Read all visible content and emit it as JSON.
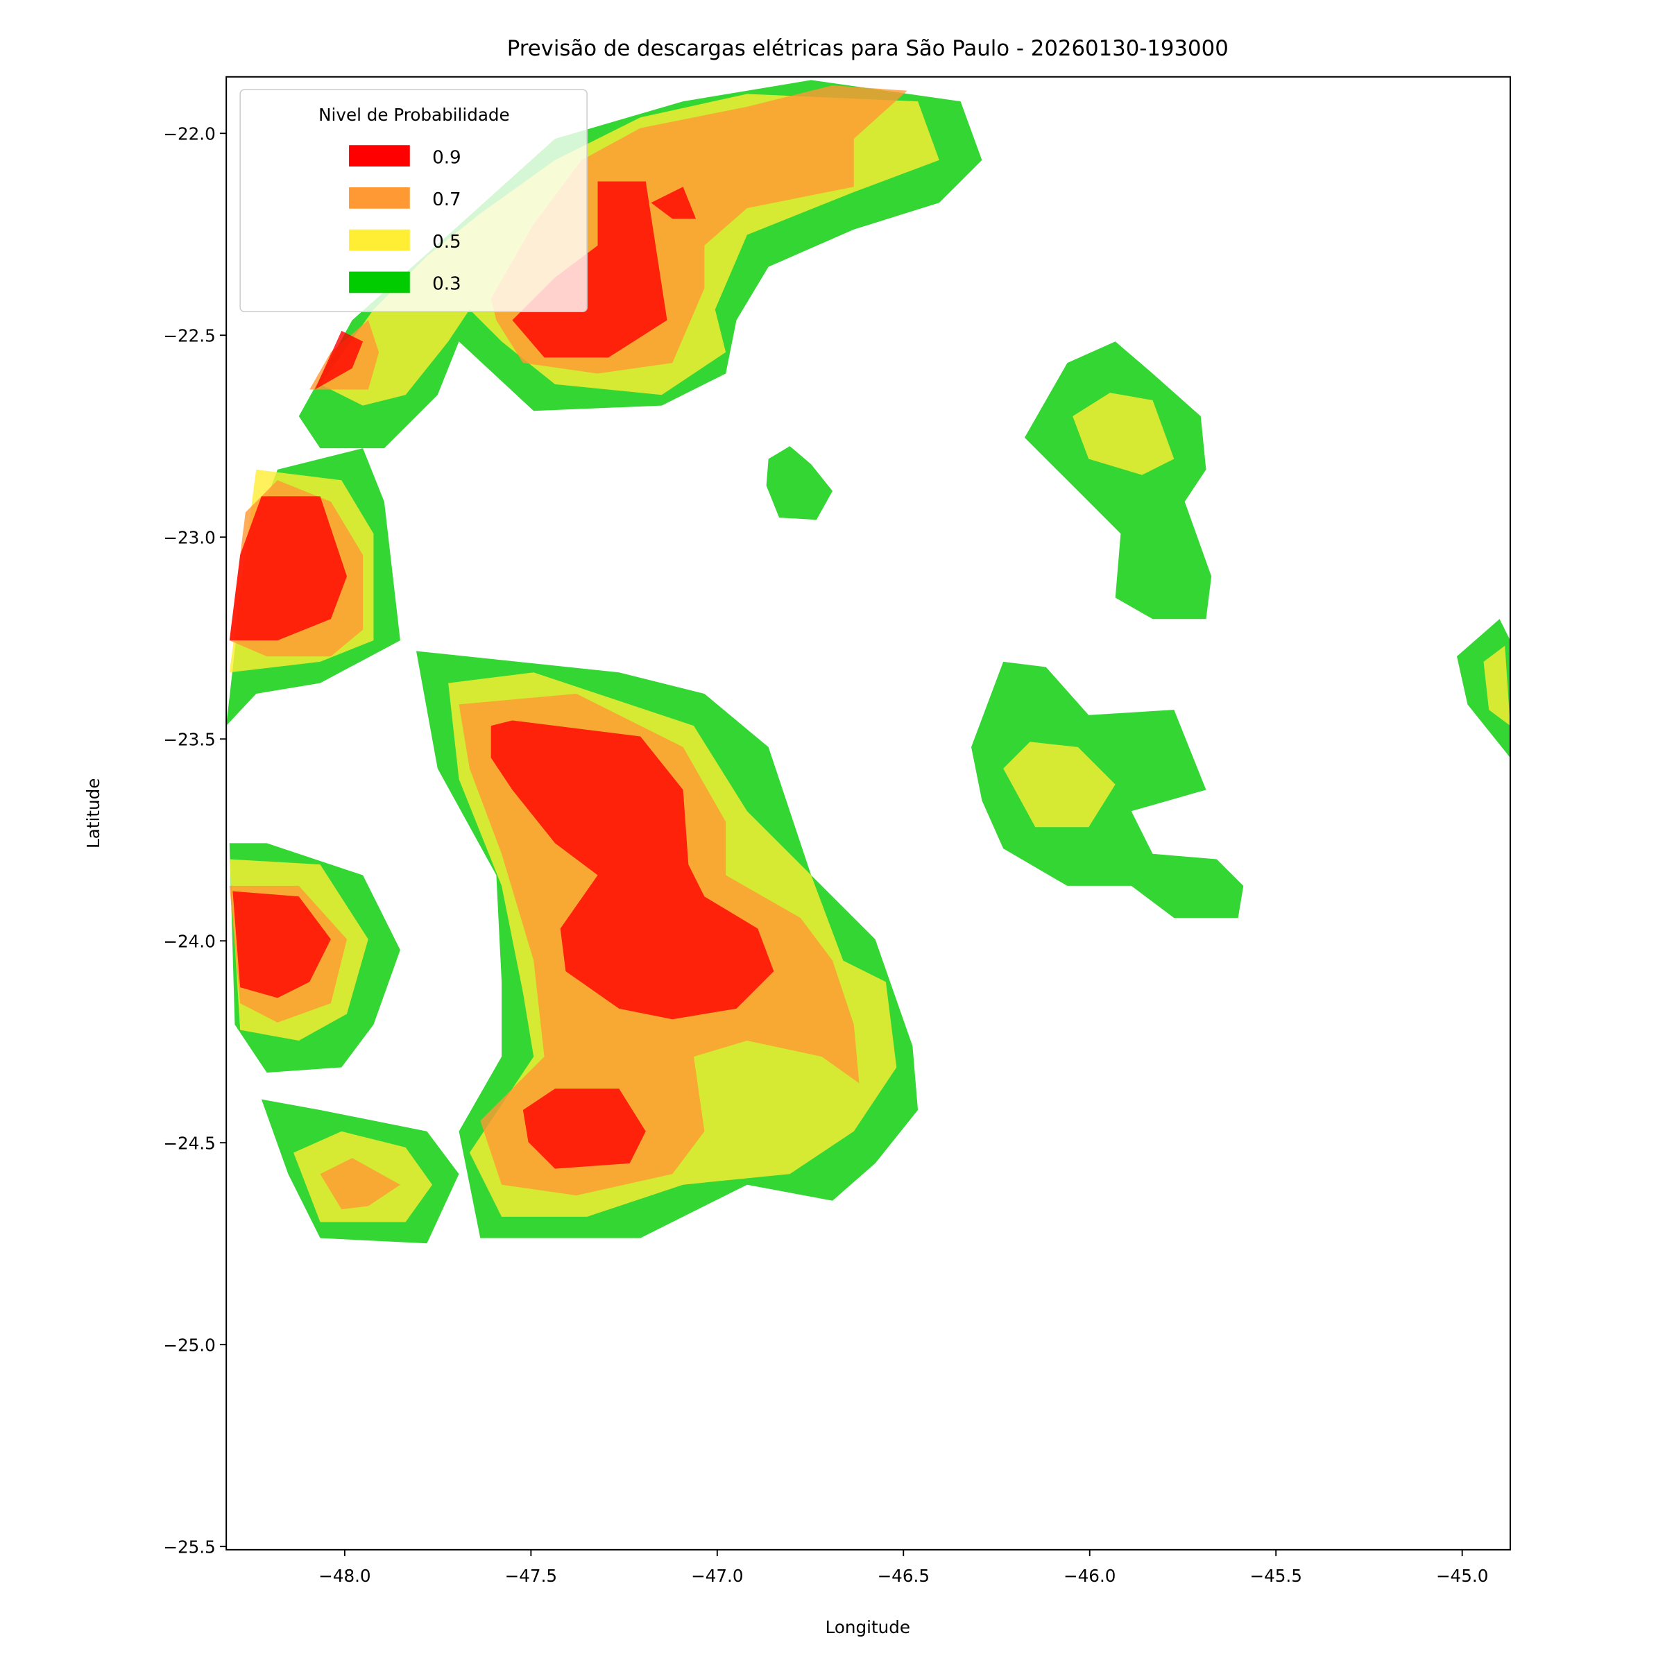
{
  "chart_data": {
    "type": "contour",
    "title": "Previsão de descargas elétricas para São Paulo - 20260130-193000",
    "xlabel": "Longitude",
    "ylabel": "Latitude",
    "xlim": [
      -48.318,
      -44.871
    ],
    "ylim": [
      -25.508,
      -21.86
    ],
    "xticks": [
      {
        "value": -48,
        "label": "−48.0"
      },
      {
        "value": -47.5,
        "label": "−47.5"
      },
      {
        "value": -47,
        "label": "−47.0"
      },
      {
        "value": -46.5,
        "label": "−46.5"
      },
      {
        "value": -46,
        "label": "−46.0"
      },
      {
        "value": -45.5,
        "label": "−45.5"
      },
      {
        "value": -45,
        "label": "−45.0"
      }
    ],
    "yticks": [
      {
        "value": -22,
        "label": "−22.0"
      },
      {
        "value": -22.5,
        "label": "−22.5"
      },
      {
        "value": -23,
        "label": "−23.0"
      },
      {
        "value": -23.5,
        "label": "−23.5"
      },
      {
        "value": -24,
        "label": "−24.0"
      },
      {
        "value": -24.5,
        "label": "−24.5"
      },
      {
        "value": -25,
        "label": "−25.0"
      },
      {
        "value": -25.5,
        "label": "−25.5"
      }
    ],
    "legend_title": "Nivel de Probabilidade",
    "levels": [
      0.9,
      0.7,
      0.5,
      0.3
    ],
    "colors": [
      "#ff0000",
      "#ff9933",
      "#ffee33",
      "#00cc00"
    ],
    "legend": "upper left"
  }
}
